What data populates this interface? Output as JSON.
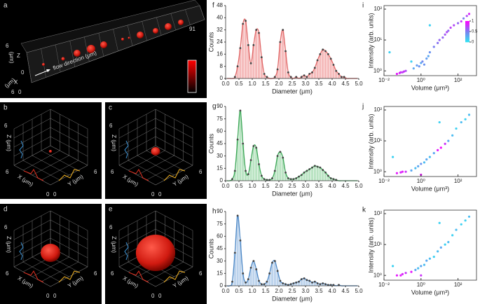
{
  "panel_a": {
    "label": "a",
    "end": "91",
    "flow": "flow direction (μm)",
    "z": "Z",
    "x": "X",
    "unit": "(μm)",
    "max": "6",
    "min": "0"
  },
  "render3d": {
    "labels": [
      "b",
      "c",
      "d",
      "e"
    ],
    "z": "Z (μm)",
    "x": "X (μm)",
    "y": "Y (μm)",
    "max": "6",
    "min": "0"
  },
  "chart_data": [
    {
      "type": "histogram",
      "label": "f",
      "xlabel": "Diameter (μm)",
      "ylabel": "Counts",
      "color": "#e06666",
      "bar_color": "#f5baba",
      "bins": [
        0,
        0.1,
        0.2,
        0.3,
        0.4,
        0.5,
        0.6,
        0.7,
        0.8,
        0.9,
        1,
        1.1,
        1.2,
        1.3,
        1.4,
        1.5,
        1.6,
        1.7,
        1.8,
        1.9,
        2,
        2.1,
        2.2,
        2.3,
        2.4,
        2.5,
        2.6,
        2.7,
        2.8,
        2.9,
        3,
        3.1,
        3.2,
        3.3,
        3.4,
        3.5,
        3.6,
        3.7,
        3.8,
        3.9,
        4,
        4.1,
        4.2,
        4.3,
        4.4,
        4.5,
        4.6,
        4.7,
        4.8,
        4.9,
        5
      ],
      "values": [
        0,
        0,
        0,
        1,
        8,
        20,
        36,
        38,
        22,
        10,
        22,
        32,
        30,
        14,
        3,
        1,
        0,
        0,
        1,
        6,
        24,
        32,
        18,
        4,
        1,
        0,
        1,
        0,
        1,
        2,
        1,
        3,
        4,
        7,
        12,
        16,
        19,
        18,
        16,
        13,
        9,
        5,
        3,
        1,
        1,
        0,
        0,
        0,
        0,
        0
      ],
      "xlim": [
        0,
        5
      ],
      "xticks": [
        {
          "value": 0,
          "label": "0.0"
        },
        0.5,
        {
          "value": 1,
          "label": "1.0"
        },
        1.5,
        {
          "value": 2,
          "label": "2.0"
        },
        2.5,
        {
          "value": 3,
          "label": "3.0"
        },
        3.5,
        {
          "value": 4,
          "label": "4.0"
        },
        4.5,
        {
          "value": 5,
          "label": "5.0"
        }
      ],
      "ylim": [
        0,
        48
      ],
      "yticks": [
        0,
        8,
        16,
        24,
        32,
        40,
        48
      ]
    },
    {
      "type": "histogram",
      "label": "g",
      "xlabel": "Diameter (μm)",
      "ylabel": "Counts",
      "color": "#3aa655",
      "bar_color": "#b9e3c2",
      "bins": [
        0,
        0.1,
        0.2,
        0.3,
        0.4,
        0.5,
        0.6,
        0.7,
        0.8,
        0.9,
        1,
        1.1,
        1.2,
        1.3,
        1.4,
        1.5,
        1.6,
        1.7,
        1.8,
        1.9,
        2,
        2.1,
        2.2,
        2.3,
        2.4,
        2.5,
        2.6,
        2.7,
        2.8,
        2.9,
        3,
        3.1,
        3.2,
        3.3,
        3.4,
        3.5,
        3.6,
        3.7,
        3.8,
        3.9,
        4,
        4.1,
        4.2,
        4.3,
        4.4,
        4.5,
        4.6,
        4.7,
        4.8,
        4.9,
        5
      ],
      "values": [
        0,
        0,
        2,
        12,
        50,
        85,
        45,
        12,
        8,
        25,
        42,
        40,
        20,
        6,
        2,
        1,
        1,
        3,
        12,
        30,
        35,
        28,
        10,
        3,
        2,
        2,
        3,
        5,
        7,
        10,
        12,
        14,
        16,
        18,
        17,
        16,
        13,
        10,
        6,
        3,
        2,
        1,
        0,
        0,
        0,
        0,
        0,
        0,
        0,
        0
      ],
      "xlim": [
        0,
        5
      ],
      "xticks": [
        {
          "value": 0,
          "label": "0.0"
        },
        0.5,
        {
          "value": 1,
          "label": "1.0"
        },
        1.5,
        {
          "value": 2,
          "label": "2.0"
        },
        2.5,
        {
          "value": 3,
          "label": "3.0"
        },
        3.5,
        {
          "value": 4,
          "label": "4.0"
        },
        4.5,
        {
          "value": 5,
          "label": "5.0"
        }
      ],
      "ylim": [
        0,
        90
      ],
      "yticks": [
        0,
        15,
        30,
        45,
        60,
        75,
        90
      ]
    },
    {
      "type": "histogram",
      "label": "h",
      "xlabel": "Diameter (μm)",
      "ylabel": "Counts",
      "color": "#4a86c5",
      "bar_color": "#bcd3ec",
      "bins": [
        0,
        0.1,
        0.2,
        0.3,
        0.4,
        0.5,
        0.6,
        0.7,
        0.8,
        0.9,
        1,
        1.1,
        1.2,
        1.3,
        1.4,
        1.5,
        1.6,
        1.7,
        1.8,
        1.9,
        2,
        2.1,
        2.2,
        2.3,
        2.4,
        2.5,
        2.6,
        2.7,
        2.8,
        2.9,
        3,
        3.1,
        3.2,
        3.3,
        3.4,
        3.5,
        3.6,
        3.7,
        3.8,
        3.9,
        4,
        4.1,
        4.2,
        4.3,
        4.4,
        4.5,
        4.6,
        4.7,
        4.8,
        4.9,
        5
      ],
      "values": [
        0,
        0,
        5,
        40,
        85,
        55,
        15,
        4,
        8,
        22,
        30,
        20,
        6,
        2,
        2,
        5,
        15,
        28,
        30,
        18,
        6,
        3,
        2,
        1,
        2,
        3,
        4,
        5,
        8,
        9,
        7,
        6,
        4,
        5,
        3,
        2,
        3,
        2,
        1,
        1,
        1,
        0,
        1,
        0,
        0,
        0,
        0,
        0,
        0,
        0
      ],
      "xlim": [
        0,
        5
      ],
      "xticks": [
        {
          "value": 0,
          "label": "0.0"
        },
        0.5,
        {
          "value": 1,
          "label": "1.0"
        },
        1.5,
        {
          "value": 2,
          "label": "2.0"
        },
        2.5,
        {
          "value": 3,
          "label": "3.0"
        },
        3.5,
        {
          "value": 4,
          "label": "4.0"
        },
        4.5,
        {
          "value": 5,
          "label": "5.0"
        }
      ],
      "ylim": [
        0,
        90
      ],
      "yticks": [
        0,
        15,
        30,
        45,
        60,
        75,
        90
      ]
    },
    {
      "type": "scatter",
      "label": "i",
      "xlabel": "Volume (μm³)",
      "ylabel": "Intensity (arb. units)",
      "log": true,
      "colormap": [
        "#2ee6f2",
        "#7b7ff0",
        "#ff00ff"
      ],
      "x": [
        0.05,
        0.07,
        0.08,
        0.1,
        0.12,
        0.15,
        0.4,
        0.6,
        0.8,
        1,
        1.2,
        1.5,
        2,
        2.5,
        3,
        5,
        8,
        10,
        15,
        20,
        25,
        30,
        40,
        60,
        100,
        150,
        200,
        300,
        400,
        0.02,
        0.3,
        3
      ],
      "values": [
        0.8,
        0.85,
        0.9,
        0.9,
        0.95,
        1,
        1.2,
        1.5,
        1.4,
        1.8,
        2,
        1.6,
        2.5,
        3,
        4,
        6,
        8,
        10,
        12,
        15,
        18,
        20,
        25,
        30,
        35,
        40,
        50,
        60,
        70,
        4,
        2,
        30
      ],
      "color_values": [
        0.9,
        0.85,
        0.8,
        0.75,
        0.8,
        0.7,
        0.3,
        0.35,
        0.4,
        0.3,
        0.45,
        0.4,
        0.35,
        0.3,
        0.4,
        0.5,
        0.55,
        0.6,
        0.6,
        0.65,
        0.7,
        0.6,
        0.75,
        0.7,
        0.6,
        0.8,
        0.5,
        0.7,
        0.85,
        0.1,
        0.1,
        0.1
      ],
      "xlim": [
        0.01,
        1000
      ],
      "xticks": [
        {
          "value": 0.01,
          "label": "10⁻²"
        },
        {
          "value": 1,
          "label": "10⁰"
        },
        {
          "value": 100,
          "label": "10²"
        }
      ],
      "ylim": [
        0.7,
        130
      ],
      "yticks": [
        {
          "value": 1,
          "label": "10⁰"
        },
        {
          "value": 10,
          "label": "10¹"
        },
        {
          "value": 100,
          "label": "10²"
        }
      ],
      "colorbar_ticks": [
        0,
        0.5,
        1
      ]
    },
    {
      "type": "scatter",
      "label": "j",
      "xlabel": "Volume (μm³)",
      "ylabel": "Intensity (arb. units)",
      "log": true,
      "colormap": [
        "#2ee6f2",
        "#7b7ff0",
        "#ff00ff"
      ],
      "x": [
        0.05,
        0.08,
        0.1,
        0.15,
        0.3,
        0.5,
        0.7,
        1,
        1.5,
        2,
        3,
        5,
        8,
        12,
        20,
        30,
        50,
        80,
        150,
        250,
        400,
        0.03,
        1,
        10
      ],
      "values": [
        0.9,
        0.95,
        1,
        1,
        1.1,
        1.3,
        1.5,
        1.8,
        2,
        2.5,
        3,
        4,
        5,
        6,
        8,
        10,
        15,
        25,
        40,
        50,
        70,
        3,
        0.8,
        40
      ],
      "color_values": [
        0.9,
        0.85,
        0.9,
        0.8,
        0.3,
        0.2,
        0.3,
        0.4,
        0.2,
        0.3,
        0.2,
        0.3,
        0.9,
        0.95,
        0.8,
        0.3,
        0.2,
        0.1,
        0.2,
        0.1,
        0.2,
        0.1,
        0.9,
        0.1
      ],
      "xlim": [
        0.01,
        1000
      ],
      "xticks": [
        {
          "value": 0.01,
          "label": "10⁻²"
        },
        {
          "value": 1,
          "label": "10⁰"
        },
        {
          "value": 100,
          "label": "10²"
        }
      ],
      "ylim": [
        0.7,
        130
      ],
      "yticks": [
        {
          "value": 1,
          "label": "10⁰"
        },
        {
          "value": 10,
          "label": "10¹"
        },
        {
          "value": 100,
          "label": "10²"
        }
      ]
    },
    {
      "type": "scatter",
      "label": "k",
      "xlabel": "Volume (μm³)",
      "ylabel": "Intensity (arb. units)",
      "log": true,
      "colormap": [
        "#2ee6f2",
        "#7b7ff0",
        "#ff00ff"
      ],
      "x": [
        0.05,
        0.08,
        0.1,
        0.15,
        0.3,
        0.5,
        0.7,
        1,
        1.5,
        2,
        3,
        5,
        8,
        12,
        20,
        30,
        50,
        80,
        150,
        250,
        400,
        0.03,
        1,
        10
      ],
      "values": [
        1,
        1,
        1.1,
        1.2,
        1.3,
        1.5,
        1.7,
        2,
        2.2,
        3,
        3.5,
        4,
        6,
        8,
        10,
        12,
        20,
        30,
        45,
        60,
        80,
        2,
        1,
        50
      ],
      "color_values": [
        0.9,
        0.9,
        0.85,
        0.8,
        0.9,
        0.3,
        0.2,
        0.3,
        0.2,
        0.3,
        0.2,
        0.1,
        0.2,
        0.3,
        0.1,
        0.2,
        0.1,
        0.2,
        0.1,
        0.1,
        0.2,
        0.1,
        0.8,
        0.1
      ],
      "xlim": [
        0.01,
        1000
      ],
      "xticks": [
        {
          "value": 0.01,
          "label": "10⁻²"
        },
        {
          "value": 1,
          "label": "10⁰"
        },
        {
          "value": 100,
          "label": "10²"
        }
      ],
      "ylim": [
        0.7,
        130
      ],
      "yticks": [
        {
          "value": 1,
          "label": "10⁰"
        },
        {
          "value": 10,
          "label": "10¹"
        },
        {
          "value": 100,
          "label": "10²"
        }
      ]
    }
  ]
}
